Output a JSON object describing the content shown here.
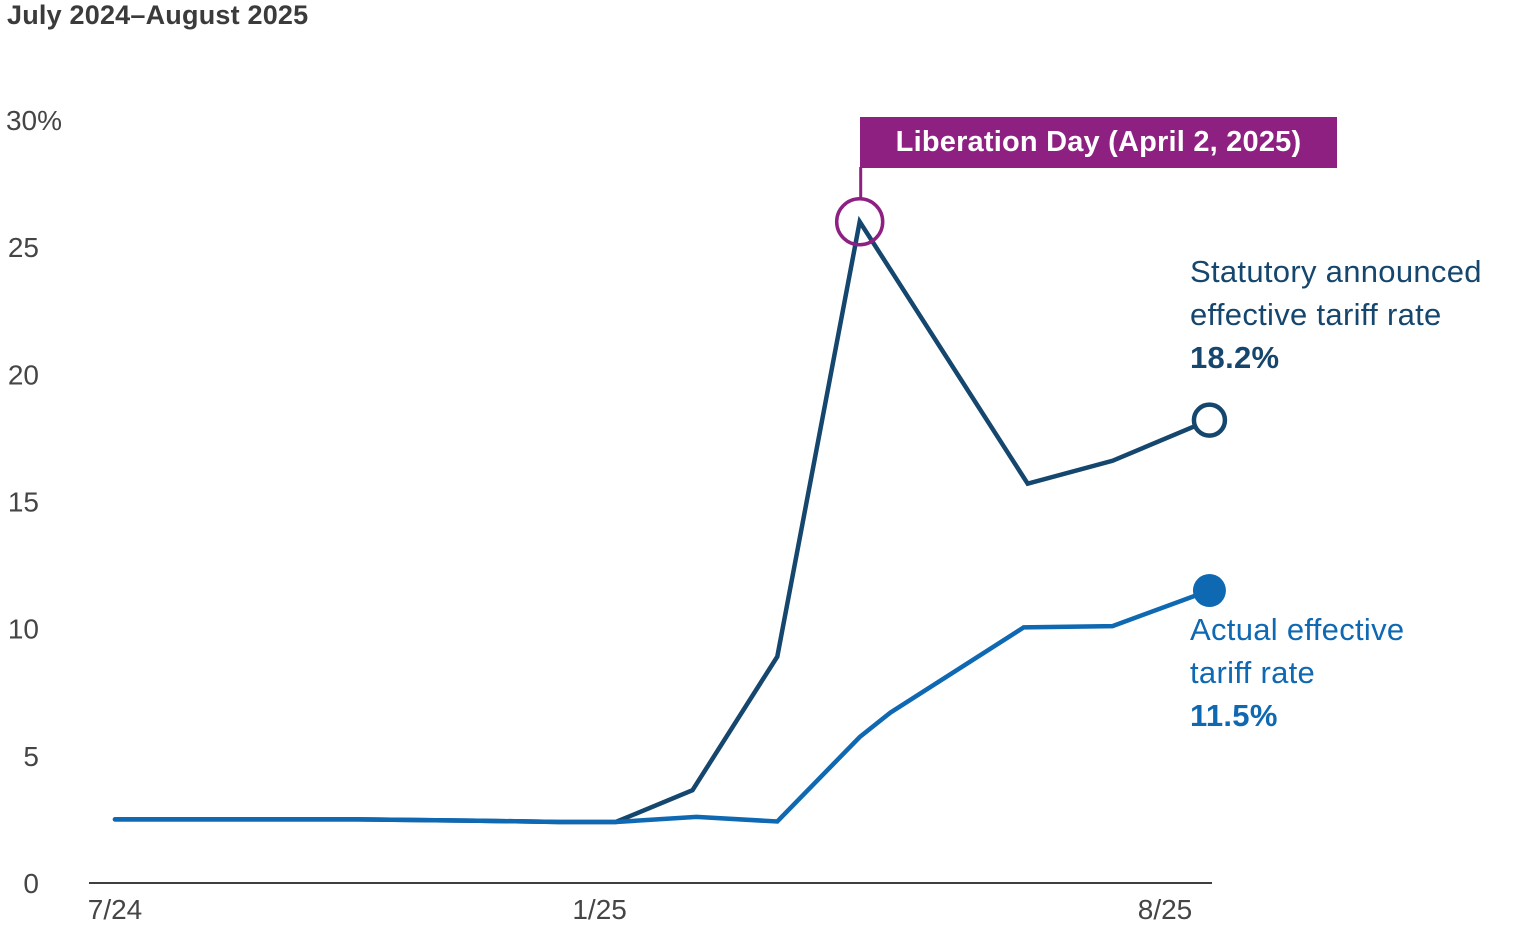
{
  "title": "July 2024–August 2025",
  "annotation": {
    "label": "Liberation Day (April 2, 2025)"
  },
  "series_labels": {
    "statutory": {
      "line1": "Statutory announced",
      "line2": "effective tariff rate",
      "value": "18.2%"
    },
    "actual": {
      "line1": "Actual effective",
      "line2": "tariff rate",
      "value": "11.5%"
    }
  },
  "colors": {
    "statutory": "#14466e",
    "actual": "#0f68b2",
    "annotation_bg": "#8e2082",
    "annotation_text": "#ffffff",
    "axis": "#3f3f3f",
    "tick_text": "#454545",
    "title_text": "#3b3b3b"
  },
  "chart_data": {
    "type": "line",
    "title": "July 2024–August 2025",
    "xlabel": "",
    "ylabel": "",
    "ylim": [
      0,
      30
    ],
    "grid": false,
    "legend_position": "end-of-line labels",
    "x_unit": "months since July 2024",
    "x_ticks": [
      {
        "label": "7/24",
        "m": 0
      },
      {
        "label": "1/25",
        "m": 6
      },
      {
        "label": "8/25",
        "m": 13
      }
    ],
    "y_ticks": [
      {
        "label": "0",
        "v": 0
      },
      {
        "label": "5",
        "v": 5
      },
      {
        "label": "10",
        "v": 10
      },
      {
        "label": "15",
        "v": 15
      },
      {
        "label": "20",
        "v": 20
      },
      {
        "label": "25",
        "v": 25
      },
      {
        "label": "30%",
        "v": 30
      }
    ],
    "series": [
      {
        "id": "statutory",
        "name": "Statutory announced effective tariff rate",
        "end_value": 18.2,
        "marker": "open-circle",
        "points": [
          [
            0,
            2.5
          ],
          [
            1.5,
            2.5
          ],
          [
            3,
            2.5
          ],
          [
            4.5,
            2.45
          ],
          [
            5.5,
            2.4
          ],
          [
            6.2,
            2.4
          ],
          [
            7.15,
            3.65
          ],
          [
            8.2,
            8.9
          ],
          [
            9.22,
            26.0
          ],
          [
            11.3,
            15.7
          ],
          [
            12.35,
            16.6
          ],
          [
            13.55,
            18.2
          ]
        ]
      },
      {
        "id": "actual",
        "name": "Actual effective tariff rate",
        "end_value": 11.5,
        "marker": "filled-circle",
        "points": [
          [
            0,
            2.5
          ],
          [
            1.5,
            2.5
          ],
          [
            3,
            2.5
          ],
          [
            4.5,
            2.45
          ],
          [
            5.5,
            2.4
          ],
          [
            6.2,
            2.4
          ],
          [
            7.2,
            2.6
          ],
          [
            8.2,
            2.42
          ],
          [
            9.22,
            5.74
          ],
          [
            9.6,
            6.7
          ],
          [
            11.25,
            10.05
          ],
          [
            12.35,
            10.1
          ],
          [
            13.55,
            11.5
          ]
        ]
      }
    ],
    "annotation": {
      "label": "Liberation Day (April 2, 2025)",
      "attached_to": {
        "series": "statutory",
        "m": 9.22,
        "v": 26.0
      }
    }
  }
}
